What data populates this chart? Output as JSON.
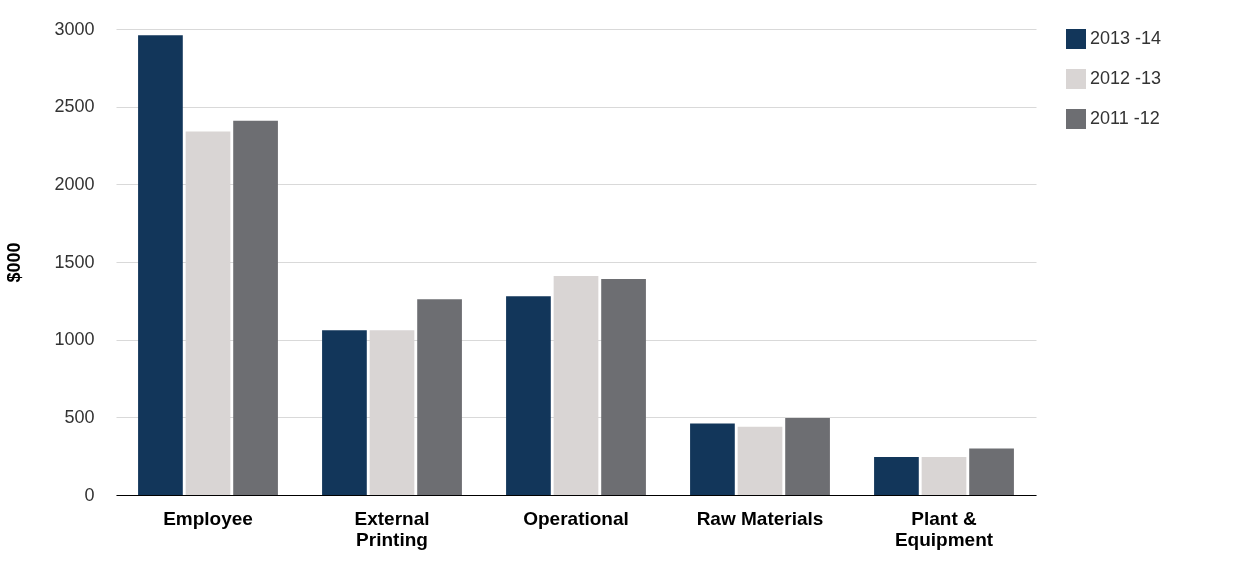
{
  "chart_data": {
    "type": "bar",
    "ylabel": "$000",
    "categories": [
      "Employee",
      "External\nPrinting",
      "Operational",
      "Raw Materials",
      "Plant &\nEquipment"
    ],
    "series": [
      {
        "name": "2013 -14",
        "color": "#12365a",
        "values": [
          2960,
          1060,
          1280,
          460,
          245
        ]
      },
      {
        "name": "2012 -13",
        "color": "#d9d5d4",
        "values": [
          2340,
          1060,
          1410,
          440,
          245
        ]
      },
      {
        "name": "2011 -12",
        "color": "#6d6e72",
        "values": [
          2410,
          1260,
          1390,
          495,
          300
        ]
      }
    ],
    "ylim": [
      0,
      3000
    ],
    "yticks": [
      0,
      500,
      1000,
      1500,
      2000,
      2500,
      3000
    ],
    "grid": "y",
    "legend": "top right"
  }
}
